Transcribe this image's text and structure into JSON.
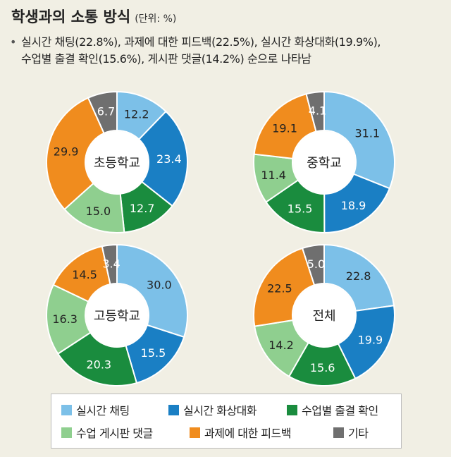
{
  "title": "학생과의 소통 방식",
  "unit": "(단위: %)",
  "summary": {
    "line1": "실시간 채팅(22.8%), 과제에 대한 피드백(22.5%), 실시간 화상대화(19.9%),",
    "line2": "수업별 출결 확인(15.6%), 게시판 댓글(14.2%) 순으로 나타남"
  },
  "legend": [
    {
      "key": "chat",
      "label": "실시간 채팅",
      "color": "#7cc0e8"
    },
    {
      "key": "video",
      "label": "실시간 화상대화",
      "color": "#1a7fc4"
    },
    {
      "key": "attendance",
      "label": "수업별 출결 확인",
      "color": "#1a8c3e"
    },
    {
      "key": "board",
      "label": "수업 게시판 댓글",
      "color": "#8fcf8f"
    },
    {
      "key": "feedback",
      "label": "과제에 대한 피드백",
      "color": "#f08c1e"
    },
    {
      "key": "other",
      "label": "기타",
      "color": "#6f6f6f"
    }
  ],
  "chart_data": [
    {
      "type": "pie",
      "title": "초등학교",
      "categories": [
        "실시간 채팅",
        "실시간 화상대화",
        "수업별 출결 확인",
        "수업 게시판 댓글",
        "과제에 대한 피드백",
        "기타"
      ],
      "values": [
        12.2,
        23.4,
        12.7,
        15.0,
        29.9,
        6.7
      ],
      "labels": [
        "12.2",
        "23.4",
        "12.7",
        "15.0",
        "29.9",
        "6.7"
      ]
    },
    {
      "type": "pie",
      "title": "중학교",
      "categories": [
        "실시간 채팅",
        "실시간 화상대화",
        "수업별 출결 확인",
        "수업 게시판 댓글",
        "과제에 대한 피드백",
        "기타"
      ],
      "values": [
        31.1,
        18.9,
        15.5,
        11.4,
        19.1,
        4.1
      ],
      "labels": [
        "31.1",
        "18.9",
        "15.5",
        "11.4",
        "19.1",
        "4.1"
      ]
    },
    {
      "type": "pie",
      "title": "고등학교",
      "categories": [
        "실시간 채팅",
        "실시간 화상대화",
        "수업별 출결 확인",
        "수업 게시판 댓글",
        "과제에 대한 피드백",
        "기타"
      ],
      "values": [
        30.0,
        15.5,
        20.3,
        16.3,
        14.5,
        3.4
      ],
      "labels": [
        "30.0",
        "15.5",
        "20.3",
        "16.3",
        "14.5",
        "3.4"
      ]
    },
    {
      "type": "pie",
      "title": "전체",
      "categories": [
        "실시간 채팅",
        "실시간 화상대화",
        "수업별 출결 확인",
        "수업 게시판 댓글",
        "과제에 대한 피드백",
        "기타"
      ],
      "values": [
        22.8,
        19.9,
        15.6,
        14.2,
        22.5,
        5.0
      ],
      "labels": [
        "22.8",
        "19.9",
        "15.6",
        "14.2",
        "22.5",
        "5.0"
      ]
    }
  ]
}
